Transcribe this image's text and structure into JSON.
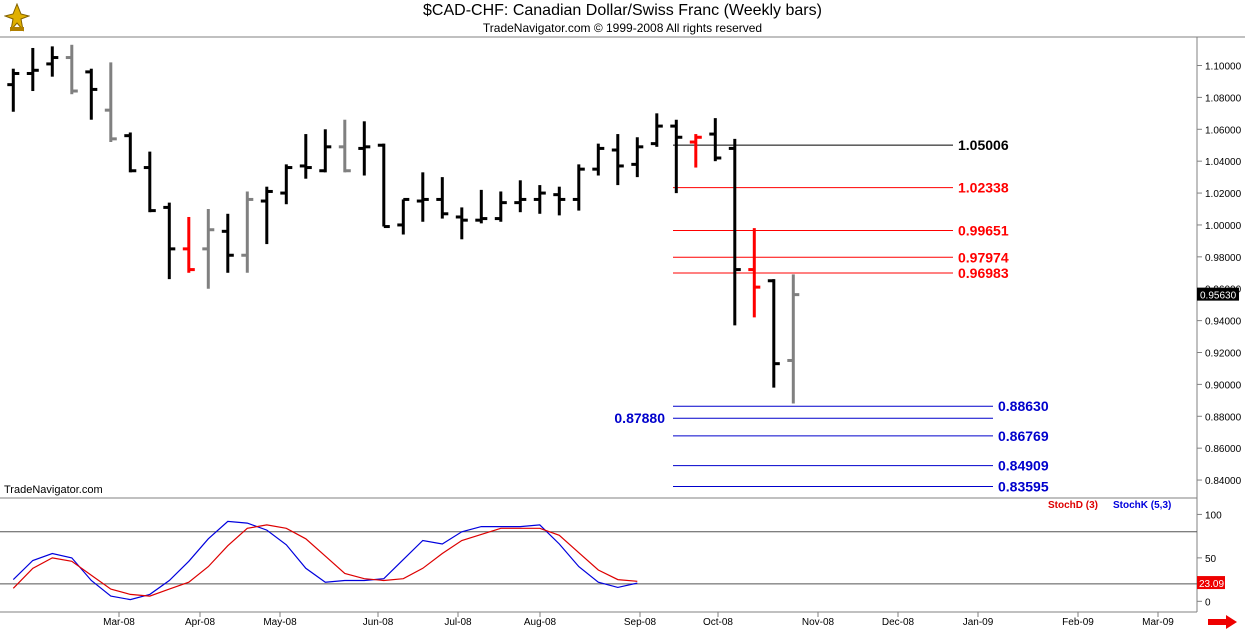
{
  "chart_data": {
    "type": "bar",
    "title": "$CAD-CHF:  Canadian Dollar/Swiss Franc  (Weekly bars)",
    "subtitle": "TradeNavigator.com © 1999-2008 All rights reserved",
    "watermark": "TradeNavigator.com",
    "price_axis": {
      "ylim": [
        0.83,
        1.116
      ],
      "ticks": [
        "1.10000",
        "1.08000",
        "1.06000",
        "1.04000",
        "1.02000",
        "1.00000",
        "0.98000",
        "0.96000",
        "0.94000",
        "0.92000",
        "0.90000",
        "0.88000",
        "0.86000",
        "0.84000"
      ],
      "tick_values": [
        1.1,
        1.08,
        1.06,
        1.04,
        1.02,
        1.0,
        0.98,
        0.96,
        0.94,
        0.92,
        0.9,
        0.88,
        0.86,
        0.84
      ],
      "last_price": "0.95630",
      "last_value": 0.9563
    },
    "x_ticks": [
      "Mar-08",
      "Apr-08",
      "May-08",
      "Jun-08",
      "Jul-08",
      "Aug-08",
      "Sep-08",
      "Oct-08",
      "Nov-08",
      "Dec-08",
      "Jan-09",
      "Feb-09",
      "Mar-09"
    ],
    "ohlc": [
      {
        "open": 1.088,
        "high": 1.098,
        "low": 1.071,
        "close": 1.095,
        "color": "#000000"
      },
      {
        "open": 1.095,
        "high": 1.111,
        "low": 1.084,
        "close": 1.097,
        "color": "#000000"
      },
      {
        "open": 1.101,
        "high": 1.112,
        "low": 1.093,
        "close": 1.105,
        "color": "#000000"
      },
      {
        "open": 1.105,
        "high": 1.113,
        "low": 1.082,
        "close": 1.084,
        "color": "#808080"
      },
      {
        "open": 1.096,
        "high": 1.098,
        "low": 1.066,
        "close": 1.085,
        "color": "#000000"
      },
      {
        "open": 1.072,
        "high": 1.102,
        "low": 1.052,
        "close": 1.054,
        "color": "#808080"
      },
      {
        "open": 1.056,
        "high": 1.058,
        "low": 1.033,
        "close": 1.034,
        "color": "#000000"
      },
      {
        "open": 1.036,
        "high": 1.046,
        "low": 1.008,
        "close": 1.009,
        "color": "#000000"
      },
      {
        "open": 1.011,
        "high": 1.014,
        "low": 0.966,
        "close": 0.985,
        "color": "#000000"
      },
      {
        "open": 0.985,
        "high": 1.005,
        "low": 0.97,
        "close": 0.972,
        "color": "#ff0000"
      },
      {
        "open": 0.985,
        "high": 1.01,
        "low": 0.96,
        "close": 0.997,
        "color": "#808080"
      },
      {
        "open": 0.996,
        "high": 1.007,
        "low": 0.97,
        "close": 0.981,
        "color": "#000000"
      },
      {
        "open": 0.981,
        "high": 1.021,
        "low": 0.97,
        "close": 1.016,
        "color": "#808080"
      },
      {
        "open": 1.015,
        "high": 1.024,
        "low": 0.988,
        "close": 1.021,
        "color": "#000000"
      },
      {
        "open": 1.02,
        "high": 1.038,
        "low": 1.013,
        "close": 1.036,
        "color": "#000000"
      },
      {
        "open": 1.037,
        "high": 1.057,
        "low": 1.029,
        "close": 1.036,
        "color": "#000000"
      },
      {
        "open": 1.034,
        "high": 1.06,
        "low": 1.033,
        "close": 1.049,
        "color": "#000000"
      },
      {
        "open": 1.049,
        "high": 1.066,
        "low": 1.033,
        "close": 1.034,
        "color": "#808080"
      },
      {
        "open": 1.048,
        "high": 1.065,
        "low": 1.031,
        "close": 1.049,
        "color": "#000000"
      },
      {
        "open": 1.05,
        "high": 1.051,
        "low": 0.999,
        "close": 0.999,
        "color": "#000000"
      },
      {
        "open": 1.0,
        "high": 1.016,
        "low": 0.994,
        "close": 1.016,
        "color": "#000000"
      },
      {
        "open": 1.015,
        "high": 1.033,
        "low": 1.002,
        "close": 1.016,
        "color": "#000000"
      },
      {
        "open": 1.016,
        "high": 1.03,
        "low": 1.004,
        "close": 1.007,
        "color": "#000000"
      },
      {
        "open": 1.005,
        "high": 1.011,
        "low": 0.991,
        "close": 1.003,
        "color": "#000000"
      },
      {
        "open": 1.003,
        "high": 1.022,
        "low": 1.001,
        "close": 1.004,
        "color": "#000000"
      },
      {
        "open": 1.004,
        "high": 1.021,
        "low": 1.002,
        "close": 1.014,
        "color": "#000000"
      },
      {
        "open": 1.014,
        "high": 1.028,
        "low": 1.008,
        "close": 1.016,
        "color": "#000000"
      },
      {
        "open": 1.016,
        "high": 1.025,
        "low": 1.007,
        "close": 1.02,
        "color": "#000000"
      },
      {
        "open": 1.019,
        "high": 1.024,
        "low": 1.006,
        "close": 1.016,
        "color": "#000000"
      },
      {
        "open": 1.016,
        "high": 1.038,
        "low": 1.009,
        "close": 1.035,
        "color": "#000000"
      },
      {
        "open": 1.035,
        "high": 1.051,
        "low": 1.031,
        "close": 1.048,
        "color": "#000000"
      },
      {
        "open": 1.047,
        "high": 1.057,
        "low": 1.025,
        "close": 1.037,
        "color": "#000000"
      },
      {
        "open": 1.038,
        "high": 1.055,
        "low": 1.03,
        "close": 1.049,
        "color": "#000000"
      },
      {
        "open": 1.051,
        "high": 1.07,
        "low": 1.049,
        "close": 1.062,
        "color": "#000000"
      },
      {
        "open": 1.062,
        "high": 1.066,
        "low": 1.02,
        "close": 1.055,
        "color": "#000000"
      },
      {
        "open": 1.052,
        "high": 1.057,
        "low": 1.036,
        "close": 1.055,
        "color": "#ff0000"
      },
      {
        "open": 1.057,
        "high": 1.067,
        "low": 1.04,
        "close": 1.042,
        "color": "#000000"
      },
      {
        "open": 1.048,
        "high": 1.054,
        "low": 0.937,
        "close": 0.972,
        "color": "#000000"
      },
      {
        "open": 0.972,
        "high": 0.998,
        "low": 0.942,
        "close": 0.961,
        "color": "#ff0000"
      },
      {
        "open": 0.965,
        "high": 0.966,
        "low": 0.898,
        "close": 0.913,
        "color": "#000000"
      },
      {
        "open": 0.915,
        "high": 0.969,
        "low": 0.888,
        "close": 0.9563,
        "color": "#808080"
      }
    ],
    "levels": [
      {
        "value": 1.05006,
        "label": "1.05006",
        "color": "#000000"
      },
      {
        "value": 1.02338,
        "label": "1.02338",
        "color": "#ff0000"
      },
      {
        "value": 0.99651,
        "label": "0.99651",
        "color": "#ff0000"
      },
      {
        "value": 0.97974,
        "label": "0.97974",
        "color": "#ff0000"
      },
      {
        "value": 0.96983,
        "label": "0.96983",
        "color": "#ff0000"
      },
      {
        "value": 0.8863,
        "label": "0.88630",
        "color": "#0000cc"
      },
      {
        "value": 0.8788,
        "label": "0.87880",
        "color": "#0000cc"
      },
      {
        "value": 0.86769,
        "label": "0.86769",
        "color": "#0000cc"
      },
      {
        "value": 0.84909,
        "label": "0.84909",
        "color": "#0000cc"
      },
      {
        "value": 0.83595,
        "label": "0.83595",
        "color": "#0000cc"
      }
    ],
    "stochastic": {
      "ylim": [
        -10,
        112
      ],
      "ticks": [
        "100",
        "50",
        "0"
      ],
      "tick_values": [
        100,
        50,
        0
      ],
      "reference_lines": [
        80,
        20
      ],
      "legend_d": "StochD (3)",
      "legend_k": "StochK (5,3)",
      "last_value_label": "23.09",
      "d_color": "#dd0000",
      "k_color": "#0000dd",
      "stoch_d": [
        15,
        38,
        50,
        46,
        30,
        14,
        8,
        6,
        14,
        22,
        40,
        64,
        84,
        88,
        84,
        72,
        52,
        32,
        26,
        24,
        26,
        38,
        55,
        70,
        77,
        84,
        84,
        84,
        76,
        56,
        36,
        25,
        23
      ],
      "stoch_k": [
        25,
        47,
        55,
        50,
        24,
        6,
        2,
        8,
        24,
        46,
        72,
        92,
        90,
        82,
        65,
        38,
        22,
        24,
        24,
        26,
        48,
        70,
        66,
        80,
        86,
        86,
        86,
        88,
        66,
        40,
        22,
        16,
        21
      ]
    }
  }
}
